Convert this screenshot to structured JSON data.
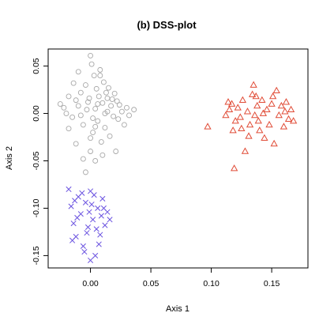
{
  "chart_data": {
    "type": "scatter",
    "title": "(b)  DSS-plot",
    "xlabel": "Axis 1",
    "ylabel": "Axis 2",
    "xlim": [
      -0.035,
      0.18
    ],
    "ylim": [
      -0.163,
      0.068
    ],
    "x_ticks": [
      "0.00",
      "0.05",
      "0.10",
      "0.15"
    ],
    "y_ticks": [
      "-0.15",
      "-0.10",
      "-0.05",
      "0.00",
      "0.05"
    ],
    "grid": false,
    "legend": "none",
    "series": [
      {
        "marker": "circle",
        "color": "#a8a8a8",
        "points": [
          [
            -0.025,
            0.01
          ],
          [
            -0.022,
            0.006
          ],
          [
            -0.018,
            0.018
          ],
          [
            -0.015,
            -0.004
          ],
          [
            -0.012,
            0.014
          ],
          [
            -0.01,
            0.044
          ],
          [
            -0.008,
            0.022
          ],
          [
            -0.006,
            -0.012
          ],
          [
            -0.004,
            0.03
          ],
          [
            -0.002,
            0.012
          ],
          [
            0.0,
            0.061
          ],
          [
            0.001,
            0.052
          ],
          [
            0.002,
            -0.02
          ],
          [
            0.003,
            0.04
          ],
          [
            0.004,
            0.005
          ],
          [
            0.005,
            0.026
          ],
          [
            0.006,
            -0.008
          ],
          [
            0.007,
            0.018
          ],
          [
            0.008,
            0.046
          ],
          [
            0.009,
            -0.03
          ],
          [
            0.01,
            0.011
          ],
          [
            0.011,
            0.033
          ],
          [
            0.012,
            -0.015
          ],
          [
            0.013,
            0.022
          ],
          [
            0.014,
            0.002
          ],
          [
            0.015,
            0.027
          ],
          [
            0.016,
            -0.024
          ],
          [
            0.017,
            0.008
          ],
          [
            0.018,
            0.015
          ],
          [
            0.019,
            -0.003
          ],
          [
            0.02,
            0.021
          ],
          [
            0.021,
            -0.04
          ],
          [
            0.022,
            0.013
          ],
          [
            0.023,
            -0.006
          ],
          [
            0.024,
            0.009
          ],
          [
            0.026,
            0.002
          ],
          [
            0.028,
            -0.012
          ],
          [
            0.03,
            0.006
          ],
          [
            0.032,
            -0.002
          ],
          [
            0.036,
            0.004
          ],
          [
            -0.004,
            -0.062
          ],
          [
            -0.006,
            -0.048
          ],
          [
            0.0,
            -0.04
          ],
          [
            -0.012,
            -0.032
          ],
          [
            0.004,
            -0.05
          ],
          [
            -0.018,
            -0.016
          ],
          [
            -0.02,
            0.0
          ],
          [
            0.01,
            -0.044
          ],
          [
            0.008,
            0.04
          ],
          [
            -0.014,
            0.032
          ],
          [
            0.002,
            -0.005
          ],
          [
            -0.003,
            0.004
          ],
          [
            0.006,
            0.01
          ],
          [
            -0.008,
            -0.002
          ],
          [
            0.012,
            0.0
          ],
          [
            -0.001,
            0.016
          ],
          [
            0.004,
            -0.014
          ],
          [
            -0.01,
            0.008
          ],
          [
            0.014,
            0.016
          ],
          [
            0.0,
            -0.026
          ]
        ]
      },
      {
        "marker": "triangle",
        "color": "#e04b36",
        "points": [
          [
            0.097,
            -0.014
          ],
          [
            0.112,
            -0.002
          ],
          [
            0.115,
            0.004
          ],
          [
            0.117,
            0.01
          ],
          [
            0.119,
            -0.058
          ],
          [
            0.12,
            -0.008
          ],
          [
            0.122,
            0.006
          ],
          [
            0.124,
            -0.004
          ],
          [
            0.126,
            0.014
          ],
          [
            0.128,
            -0.04
          ],
          [
            0.13,
            0.002
          ],
          [
            0.132,
            -0.012
          ],
          [
            0.134,
            0.02
          ],
          [
            0.135,
            0.03
          ],
          [
            0.136,
            -0.002
          ],
          [
            0.138,
            0.008
          ],
          [
            0.14,
            -0.018
          ],
          [
            0.142,
            0.014
          ],
          [
            0.144,
            -0.026
          ],
          [
            0.146,
            0.004
          ],
          [
            0.148,
            -0.012
          ],
          [
            0.15,
            0.01
          ],
          [
            0.152,
            -0.032
          ],
          [
            0.154,
            0.024
          ],
          [
            0.156,
            -0.002
          ],
          [
            0.158,
            0.008
          ],
          [
            0.16,
            -0.014
          ],
          [
            0.162,
            0.012
          ],
          [
            0.164,
            -0.006
          ],
          [
            0.166,
            0.004
          ],
          [
            0.168,
            -0.008
          ],
          [
            0.114,
            0.012
          ],
          [
            0.125,
            -0.016
          ],
          [
            0.137,
            0.018
          ],
          [
            0.143,
            0.0
          ],
          [
            0.151,
            0.018
          ],
          [
            0.131,
            -0.024
          ],
          [
            0.118,
            -0.018
          ],
          [
            0.161,
            0.002
          ],
          [
            0.139,
            -0.008
          ]
        ]
      },
      {
        "marker": "x",
        "color": "#6a52e0",
        "points": [
          [
            -0.018,
            -0.08
          ],
          [
            -0.016,
            -0.098
          ],
          [
            -0.014,
            -0.116
          ],
          [
            -0.012,
            -0.13
          ],
          [
            -0.01,
            -0.088
          ],
          [
            -0.008,
            -0.106
          ],
          [
            -0.006,
            -0.14
          ],
          [
            -0.004,
            -0.094
          ],
          [
            -0.002,
            -0.12
          ],
          [
            0.0,
            -0.082
          ],
          [
            0.002,
            -0.112
          ],
          [
            0.004,
            -0.15
          ],
          [
            0.006,
            -0.1
          ],
          [
            0.008,
            -0.128
          ],
          [
            0.01,
            -0.09
          ],
          [
            0.012,
            -0.118
          ],
          [
            0.014,
            -0.104
          ],
          [
            -0.015,
            -0.134
          ],
          [
            -0.011,
            -0.11
          ],
          [
            -0.007,
            -0.084
          ],
          [
            -0.003,
            -0.126
          ],
          [
            0.001,
            -0.096
          ],
          [
            0.005,
            -0.122
          ],
          [
            0.009,
            -0.108
          ],
          [
            0.016,
            -0.112
          ],
          [
            -0.013,
            -0.092
          ],
          [
            -0.005,
            -0.146
          ],
          [
            0.003,
            -0.086
          ],
          [
            0.007,
            -0.138
          ],
          [
            0.011,
            -0.1
          ],
          [
            -0.001,
            -0.104
          ],
          [
            0.0,
            -0.155
          ]
        ]
      }
    ]
  }
}
